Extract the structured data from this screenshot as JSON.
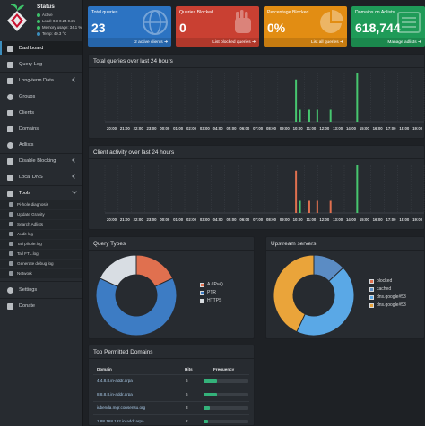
{
  "status": {
    "title": "Status",
    "active": "Active",
    "load": "Load:  0.3  0.24  0.25",
    "memory": "Memory usage:  34.1 %",
    "temp": "Temp: 49.3 °C"
  },
  "nav": {
    "dashboard": "Dashboard",
    "query_log": "Query Log",
    "long_term": "Long-term Data",
    "groups": "Groups",
    "clients": "Clients",
    "domains": "Domains",
    "adlists": "Adlists",
    "disable_blocking": "Disable Blocking",
    "local_dns": "Local DNS",
    "tools": "Tools",
    "tools_items": [
      "Pi-hole diagnosis",
      "Update Gravity",
      "Search Adlists",
      "Audit log",
      "Tail pihole.log",
      "Tail FTL.log",
      "Generate debug log",
      "Network"
    ],
    "settings": "Settings",
    "donate": "Donate"
  },
  "cards": [
    {
      "label": "Total queries",
      "value": "23",
      "footer": "2 active clients",
      "color": "#2c73c2"
    },
    {
      "label": "Queries Blocked",
      "value": "0",
      "footer": "List blocked queries",
      "color": "#c94032"
    },
    {
      "label": "Percentage Blocked",
      "value": "0%",
      "footer": "List all queries",
      "color": "#e28d13"
    },
    {
      "label": "Domains on Adlists",
      "value": "618,744",
      "footer": "Manage adlists",
      "color": "#1f9b58"
    }
  ],
  "colors": {
    "green": "#47c66f",
    "red": "#e0704f",
    "blue": "#3d7cc4",
    "gray": "#d8dde3",
    "orange": "#eaa43a",
    "lightblue": "#5aa8e6",
    "steelblue": "#5b8cc4"
  },
  "charts": {
    "total_title": "Total queries over last 24 hours",
    "client_title": "Client activity over last 24 hours",
    "hours": [
      "20:00",
      "21:00",
      "22:00",
      "23:00",
      "00:00",
      "01:00",
      "02:00",
      "03:00",
      "04:00",
      "05:00",
      "06:00",
      "07:00",
      "08:00",
      "09:00",
      "10:00",
      "11:00",
      "12:00",
      "13:00",
      "14:00",
      "15:00",
      "16:00",
      "17:00",
      "18:00",
      "19:00"
    ],
    "total_bars": [
      {
        "h": 14.3,
        "v": 7
      },
      {
        "h": 14.6,
        "v": 2
      },
      {
        "h": 15.3,
        "v": 2
      },
      {
        "h": 15.9,
        "v": 2
      },
      {
        "h": 16.9,
        "v": 2
      },
      {
        "h": 18.9,
        "v": 8
      }
    ],
    "client_bars": [
      {
        "h": 14.3,
        "v": 7,
        "c": "red"
      },
      {
        "h": 14.6,
        "v": 2,
        "c": "green"
      },
      {
        "h": 15.3,
        "v": 2,
        "c": "red"
      },
      {
        "h": 15.9,
        "v": 2,
        "c": "red"
      },
      {
        "h": 16.9,
        "v": 2,
        "c": "red"
      },
      {
        "h": 18.9,
        "v": 8,
        "c": "green"
      }
    ]
  },
  "query_types": {
    "title": "Query Types",
    "slices": [
      {
        "name": "A (IPv4)",
        "value": 18,
        "color": "#e0704f"
      },
      {
        "name": "PTR",
        "value": 64,
        "color": "#3d7cc4"
      },
      {
        "name": "HTTPS",
        "value": 18,
        "color": "#d8dde3"
      }
    ]
  },
  "upstream": {
    "title": "Upstream servers",
    "slices": [
      {
        "name": "blocked",
        "value": 0,
        "color": "#e0704f"
      },
      {
        "name": "cached",
        "value": 13,
        "color": "#5b8cc4"
      },
      {
        "name": "dns.google#53",
        "value": 44,
        "color": "#5aa8e6"
      },
      {
        "name": "dns.google#53",
        "value": 43,
        "color": "#eaa43a"
      }
    ]
  },
  "top_domains": {
    "title": "Top Permitted Domains",
    "headers": {
      "domain": "Domain",
      "hits": "Hits",
      "freq": "Frequency"
    },
    "rows": [
      {
        "domain": "4.4.8.8.in-addr.arpa",
        "hits": "6",
        "pct": 0.3
      },
      {
        "domain": "8.8.8.8.in-addr.arpa",
        "hits": "6",
        "pct": 0.3
      },
      {
        "domain": "iubenda.mgr.consensu.org",
        "hits": "3",
        "pct": 0.14
      },
      {
        "domain": "1.88.168.192.in-addr.arpa",
        "hits": "2",
        "pct": 0.09
      }
    ]
  }
}
